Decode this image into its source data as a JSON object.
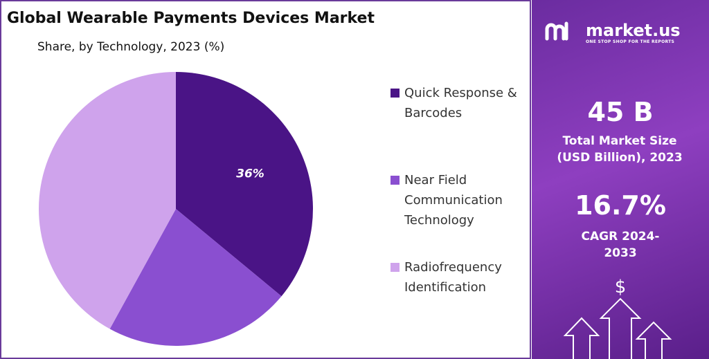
{
  "chart_data": {
    "type": "pie",
    "title": "Global Wearable Payments Devices Market",
    "subtitle": "Share, by Technology, 2023 (%)",
    "categories": [
      "Quick Response & Barcodes",
      "Near Field Communication Technology",
      "Radiofrequency Identification"
    ],
    "values": [
      36,
      22,
      42
    ],
    "value_labels": [
      "36%",
      null,
      null
    ],
    "colors": [
      "#4a1486",
      "#8a4fd0",
      "#cfa3ec"
    ]
  },
  "sidebar": {
    "brand": "market.us",
    "tagline": "ONE STOP SHOP FOR THE REPORTS",
    "market_size": "45 B",
    "market_size_label": "Total Market Size (USD Billion), 2023",
    "cagr": "16.7%",
    "cagr_label": "CAGR 2024-2033",
    "currency_symbol": "$"
  }
}
